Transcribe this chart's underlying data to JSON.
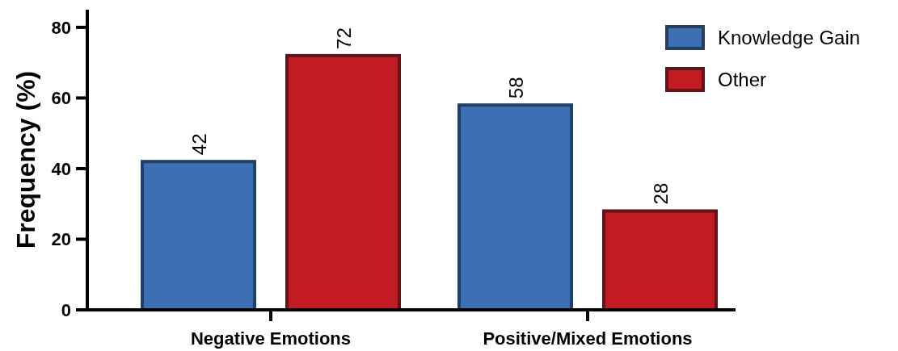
{
  "chart_data": {
    "type": "bar",
    "ylabel": "Frequency (%)",
    "categories": [
      "Negative Emotions",
      "Positive/Mixed Emotions"
    ],
    "series": [
      {
        "name": "Knowledge Gain",
        "color": "#3d6fb5",
        "values": [
          42,
          58
        ]
      },
      {
        "name": "Other",
        "color": "#c21b24",
        "values": [
          72,
          28
        ]
      }
    ],
    "ylim": [
      0,
      85
    ],
    "yticks": [
      0,
      20,
      40,
      60,
      80
    ],
    "data_labels": true,
    "legend": "top right",
    "grid": false
  }
}
